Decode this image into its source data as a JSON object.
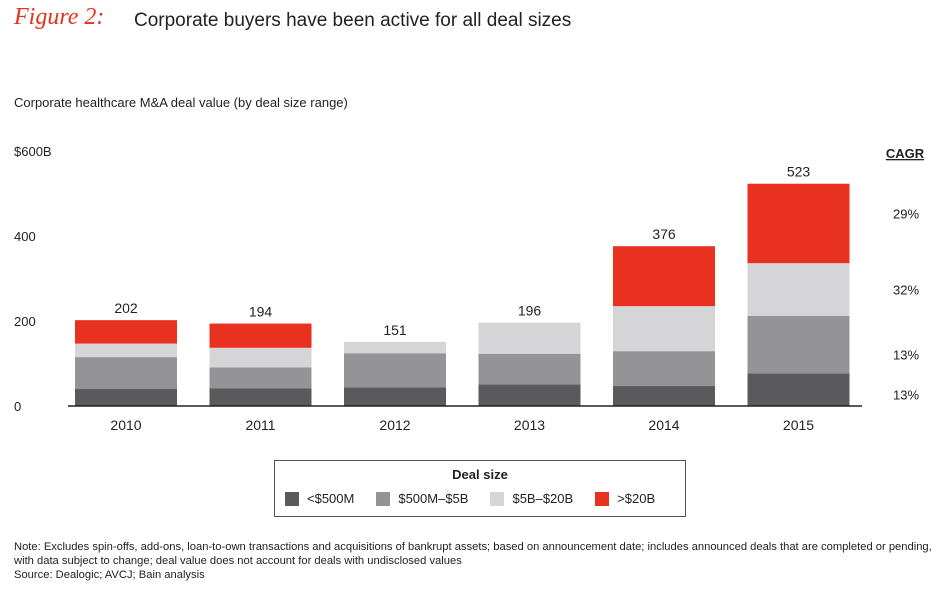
{
  "figure_label": "Figure 2:",
  "title": "Corporate buyers have been active for all deal sizes",
  "subtitle": "Corporate healthcare M&A deal value (by deal size range)",
  "note": "Note: Excludes spin-offs, add-ons, loan-to-own transactions and acquisitions of bankrupt assets; based on announcement date; includes announced deals that are completed or pending, with data subject to change; deal value does not account for deals with undisclosed values",
  "source": "Source: Dealogic; AVCJ; Bain analysis",
  "legend_title": "Deal size",
  "cagr_header": "CAGR",
  "colors": {
    "<$500M": "#5a5a5c",
    "$500M–$5B": "#949497",
    "$5B–$20B": "#d5d5d7",
    ">$20B": "#e8321f"
  },
  "chart_data": {
    "type": "bar",
    "stacked": true,
    "categories": [
      "2010",
      "2011",
      "2012",
      "2013",
      "2014",
      "2015"
    ],
    "series": [
      {
        "name": "<$500M",
        "values": [
          40,
          42,
          44,
          51,
          47,
          77
        ]
      },
      {
        "name": "$500M–$5B",
        "values": [
          75,
          49,
          80,
          72,
          82,
          135
        ]
      },
      {
        "name": "$5B–$20B",
        "values": [
          32,
          46,
          27,
          73,
          106,
          124
        ]
      },
      {
        "name": ">$20B",
        "values": [
          55,
          57,
          0,
          0,
          141,
          187
        ]
      }
    ],
    "totals": [
      202,
      194,
      151,
      196,
      376,
      523
    ],
    "ylim": [
      0,
      600
    ],
    "yticks": [
      "0",
      "200",
      "400",
      "$600B"
    ],
    "ytick_values": [
      0,
      200,
      400,
      600
    ],
    "cagr": [
      "29%",
      "32%",
      "13%",
      "13%"
    ],
    "legend_position": "bottom"
  }
}
